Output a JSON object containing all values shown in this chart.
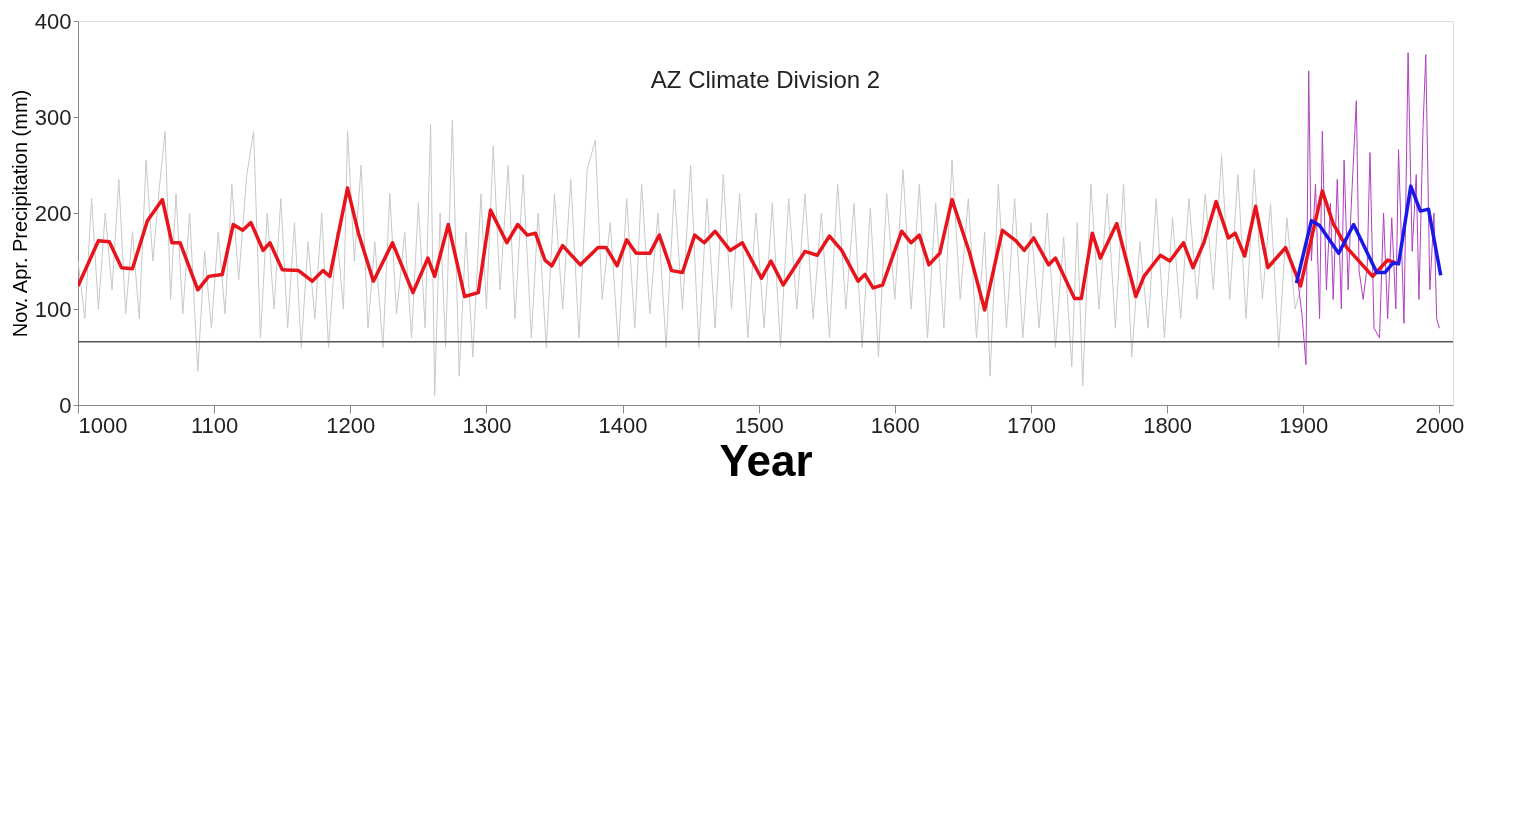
{
  "chart_data": {
    "type": "line",
    "xlabel": "Year",
    "ylabel": "Nov.  Apr. Precipitation (mm)",
    "annotations": [
      "AZ Climate Division 2"
    ],
    "xlim": [
      1000,
      2010
    ],
    "xticks": [
      1000,
      1100,
      1200,
      1300,
      1400,
      1500,
      1600,
      1700,
      1800,
      1900,
      2000
    ],
    "ylim": [
      0,
      400
    ],
    "yticks": [
      0,
      100,
      200,
      300,
      400
    ],
    "grid": false,
    "marker": "none",
    "line_style": "solid",
    "ref_lines": [
      {
        "axis": "y",
        "value": 66,
        "color": "#555555"
      }
    ],
    "series": [
      {
        "color": "#c8c8c8",
        "x": [
          1000,
          1005,
          1010,
          1015,
          1020,
          1025,
          1030,
          1035,
          1040,
          1045,
          1050,
          1055,
          1060,
          1064,
          1068,
          1072,
          1077,
          1082,
          1088,
          1093,
          1098,
          1103,
          1108,
          1113,
          1118,
          1124,
          1129,
          1134,
          1139,
          1144,
          1149,
          1154,
          1159,
          1164,
          1169,
          1174,
          1179,
          1184,
          1190,
          1195,
          1198,
          1203,
          1208,
          1213,
          1218,
          1224,
          1229,
          1234,
          1240,
          1245,
          1250,
          1255,
          1259,
          1262,
          1266,
          1270,
          1275,
          1280,
          1285,
          1290,
          1296,
          1300,
          1305,
          1310,
          1316,
          1321,
          1327,
          1333,
          1338,
          1344,
          1350,
          1356,
          1362,
          1368,
          1374,
          1380,
          1385,
          1391,
          1397,
          1403,
          1409,
          1414,
          1420,
          1426,
          1432,
          1438,
          1444,
          1450,
          1456,
          1462,
          1468,
          1474,
          1480,
          1486,
          1492,
          1498,
          1504,
          1510,
          1516,
          1522,
          1528,
          1534,
          1540,
          1546,
          1552,
          1558,
          1564,
          1570,
          1576,
          1582,
          1588,
          1594,
          1600,
          1606,
          1612,
          1618,
          1624,
          1630,
          1636,
          1642,
          1648,
          1654,
          1660,
          1666,
          1670,
          1676,
          1682,
          1688,
          1694,
          1700,
          1706,
          1712,
          1718,
          1724,
          1730,
          1734,
          1738,
          1744,
          1750,
          1756,
          1762,
          1768,
          1774,
          1780,
          1786,
          1792,
          1798,
          1804,
          1810,
          1816,
          1822,
          1828,
          1834,
          1840,
          1846,
          1852,
          1858,
          1864,
          1870,
          1876,
          1882,
          1888,
          1894,
          1900
        ],
        "values": [
          150,
          90,
          215,
          100,
          200,
          120,
          235,
          95,
          180,
          90,
          255,
          150,
          230,
          285,
          110,
          220,
          95,
          200,
          35,
          160,
          80,
          180,
          95,
          230,
          130,
          240,
          285,
          70,
          200,
          100,
          215,
          80,
          190,
          60,
          170,
          90,
          200,
          60,
          180,
          100,
          285,
          150,
          250,
          80,
          170,
          60,
          220,
          95,
          180,
          70,
          210,
          80,
          292,
          10,
          200,
          60,
          297,
          30,
          180,
          50,
          220,
          100,
          270,
          120,
          250,
          90,
          240,
          70,
          200,
          60,
          220,
          100,
          235,
          70,
          245,
          276,
          110,
          190,
          60,
          215,
          80,
          230,
          95,
          200,
          60,
          225,
          100,
          250,
          60,
          215,
          80,
          240,
          100,
          220,
          70,
          200,
          80,
          210,
          60,
          215,
          100,
          220,
          90,
          200,
          70,
          230,
          100,
          210,
          60,
          205,
          50,
          220,
          110,
          245,
          100,
          230,
          70,
          210,
          80,
          255,
          110,
          215,
          70,
          180,
          30,
          230,
          80,
          215,
          70,
          190,
          80,
          200,
          60,
          175,
          40,
          190,
          20,
          230,
          100,
          220,
          80,
          230,
          50,
          170,
          80,
          215,
          70,
          195,
          90,
          215,
          110,
          220,
          120,
          260,
          110,
          240,
          90,
          245,
          110,
          210,
          60,
          195,
          100,
          130
        ]
      },
      {
        "color": "#b040c0",
        "x": [
          1896,
          1899,
          1902,
          1904,
          1906,
          1909,
          1912,
          1914,
          1917,
          1920,
          1922,
          1925,
          1928,
          1930,
          1933,
          1935,
          1939,
          1941,
          1944,
          1947,
          1949,
          1952,
          1956,
          1959,
          1962,
          1965,
          1968,
          1970,
          1974,
          1977,
          1980,
          1983,
          1985,
          1988,
          1990,
          1993,
          1996,
          1998,
          2000
        ],
        "values": [
          130,
          95,
          42,
          348,
          150,
          230,
          90,
          285,
          120,
          210,
          110,
          235,
          100,
          255,
          120,
          200,
          317,
          140,
          110,
          145,
          263,
          80,
          70,
          200,
          90,
          195,
          100,
          266,
          85,
          367,
          160,
          240,
          110,
          290,
          365,
          120,
          200,
          90,
          80
        ]
      },
      {
        "color": "#e8141c",
        "x": [
          1000,
          1015,
          1023,
          1032,
          1040,
          1051,
          1062,
          1069,
          1075,
          1088,
          1096,
          1106,
          1114,
          1121,
          1127,
          1136,
          1141,
          1150,
          1162,
          1172,
          1180,
          1185,
          1198,
          1206,
          1217,
          1231,
          1246,
          1257,
          1262,
          1272,
          1284,
          1294,
          1303,
          1315,
          1323,
          1330,
          1336,
          1343,
          1348,
          1356,
          1369,
          1382,
          1388,
          1396,
          1403,
          1410,
          1420,
          1427,
          1436,
          1444,
          1453,
          1460,
          1468,
          1479,
          1488,
          1502,
          1509,
          1518,
          1534,
          1543,
          1552,
          1561,
          1573,
          1578,
          1584,
          1591,
          1605,
          1612,
          1618,
          1625,
          1633,
          1642,
          1655,
          1666,
          1679,
          1689,
          1695,
          1702,
          1713,
          1718,
          1732,
          1737,
          1745,
          1751,
          1763,
          1777,
          1783,
          1795,
          1802,
          1812,
          1819,
          1827,
          1836,
          1845,
          1850,
          1857,
          1865,
          1874,
          1887,
          1898,
          1914,
          1922,
          1932,
          1951,
          1962,
          1968
        ],
        "values": [
          124,
          171,
          170,
          143,
          142,
          192,
          214,
          169,
          169,
          120,
          134,
          136,
          188,
          182,
          190,
          161,
          169,
          141,
          140,
          129,
          140,
          134,
          226,
          179,
          129,
          169,
          117,
          153,
          134,
          188,
          113,
          117,
          203,
          169,
          188,
          177,
          179,
          151,
          145,
          166,
          146,
          164,
          164,
          145,
          172,
          158,
          158,
          177,
          140,
          138,
          177,
          169,
          181,
          161,
          169,
          132,
          150,
          125,
          160,
          156,
          176,
          161,
          129,
          136,
          122,
          125,
          181,
          169,
          177,
          146,
          158,
          214,
          158,
          99,
          182,
          171,
          161,
          174,
          146,
          153,
          111,
          111,
          179,
          153,
          189,
          113,
          134,
          156,
          150,
          169,
          143,
          169,
          212,
          174,
          179,
          155,
          207,
          143,
          164,
          124,
          223,
          189,
          164,
          134,
          151,
          148
        ]
      },
      {
        "color": "#1a1ae6",
        "x": [
          1895,
          1906,
          1912,
          1926,
          1937,
          1954,
          1960,
          1966,
          1970,
          1979,
          1986,
          1992,
          2001
        ],
        "values": [
          127,
          192,
          187,
          158,
          188,
          138,
          138,
          148,
          147,
          228,
          202,
          204,
          135
        ]
      }
    ]
  }
}
